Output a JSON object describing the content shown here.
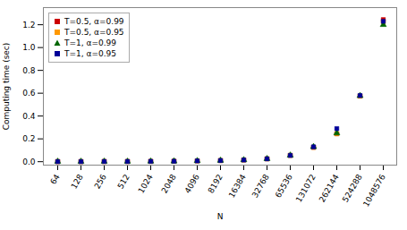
{
  "chart_data": {
    "type": "scatter",
    "categories": [
      "64",
      "128",
      "256",
      "512",
      "1024",
      "2048",
      "4096",
      "8192",
      "16384",
      "32768",
      "65536",
      "131072",
      "262144",
      "524288",
      "1048576"
    ],
    "series": [
      {
        "name": "T=0.5, α=0.99",
        "color": "#cc0000",
        "marker": "square",
        "values": [
          0.001,
          0.001,
          0.002,
          0.002,
          0.003,
          0.004,
          0.007,
          0.01,
          0.015,
          0.025,
          0.055,
          0.125,
          0.245,
          0.575,
          1.245
        ]
      },
      {
        "name": "T=0.5, α=0.95",
        "color": "#ff9900",
        "marker": "square",
        "values": [
          0.001,
          0.001,
          0.002,
          0.002,
          0.003,
          0.004,
          0.007,
          0.01,
          0.015,
          0.025,
          0.055,
          0.125,
          0.245,
          0.575,
          1.225
        ]
      },
      {
        "name": "T=1, α=0.99",
        "color": "#006600",
        "marker": "triangle",
        "values": [
          0.001,
          0.001,
          0.002,
          0.002,
          0.003,
          0.004,
          0.007,
          0.01,
          0.015,
          0.025,
          0.055,
          0.13,
          0.25,
          0.577,
          1.2
        ]
      },
      {
        "name": "T=1, α=0.95",
        "color": "#000099",
        "marker": "square",
        "values": [
          0.001,
          0.001,
          0.002,
          0.002,
          0.003,
          0.004,
          0.007,
          0.01,
          0.015,
          0.025,
          0.055,
          0.13,
          0.29,
          0.58,
          1.23
        ]
      }
    ],
    "xlabel": "N",
    "ylabel": "Computing time (sec)",
    "ylim": [
      -0.03,
      1.35
    ],
    "yticks": [
      {
        "value": 0,
        "label": "0.0"
      },
      0.2,
      0.4,
      0.6,
      0.8,
      {
        "value": 1,
        "label": "1.0"
      },
      1.2
    ],
    "grid": false,
    "legend": "upper left"
  }
}
